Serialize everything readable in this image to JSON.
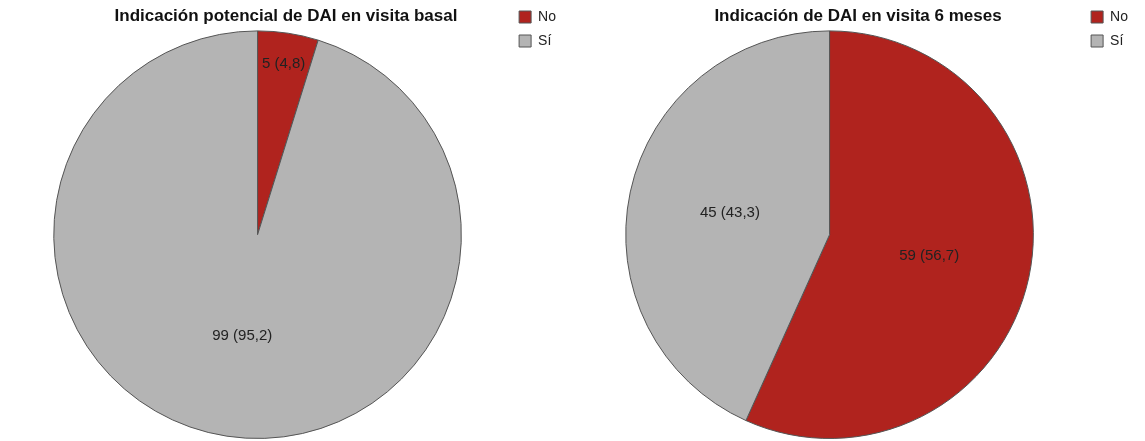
{
  "chart_data": [
    {
      "type": "pie",
      "title": "Indicación potencial de DAI en visita basal",
      "categories": [
        "No",
        "Sí"
      ],
      "values": [
        5,
        99
      ],
      "colors": [
        "#b0231e",
        "#b4b4b4"
      ],
      "value_labels": [
        "5 (4,8)",
        "99 (95,2)"
      ],
      "legend": "top right"
    },
    {
      "type": "pie",
      "title": "Indicación de DAI en visita 6 meses",
      "categories": [
        "No",
        "Sí"
      ],
      "values": [
        59,
        45
      ],
      "colors": [
        "#b0231e",
        "#b4b4b4"
      ],
      "value_labels": [
        "59 (56,7)",
        "45 (43,3)"
      ],
      "legend": "top right"
    }
  ]
}
